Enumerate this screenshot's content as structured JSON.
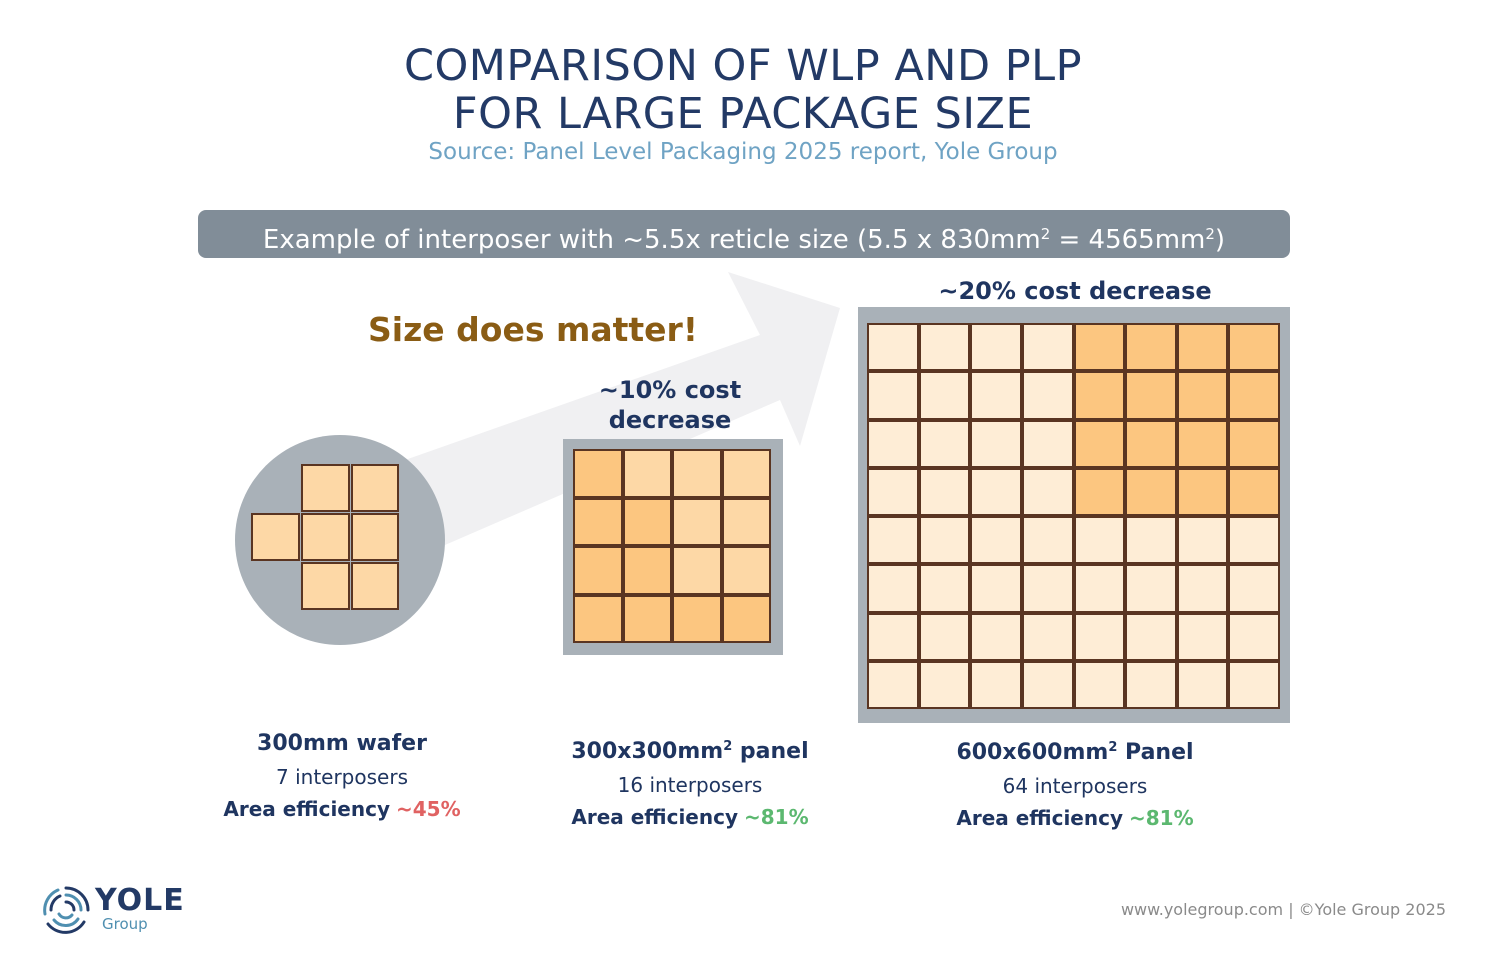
{
  "header": {
    "title_line1": "COMPARISON OF WLP AND PLP",
    "title_line2": "FOR LARGE PACKAGE SIZE",
    "source": "Source: Panel Level Packaging 2025 report, Yole Group"
  },
  "banner": {
    "text_part1": "Example of interposer with ~5.5x reticle size (5.5 x 830mm",
    "sup1": "2",
    "text_part2": " = 4565mm",
    "sup2": "2",
    "text_part3": ")"
  },
  "slogan": "Size does matter!",
  "arrow": {
    "color": "#f0f0f2",
    "direction": "up-right"
  },
  "colors": {
    "title": "#233a66",
    "subtitle": "#6fa3c4",
    "banner_bg": "#818d98",
    "slogan": "#8a5c14",
    "substrate_gray": "#a9b1b8",
    "cell_border": "#5a3522",
    "cell_dark": "#fcc680",
    "cell_mid": "#fdd8a6",
    "cell_light": "#feedd6",
    "bad": "#e06262",
    "good": "#5cb870"
  },
  "carriers": [
    {
      "id": "wafer",
      "title": "300mm wafer",
      "title_sup": "",
      "interposers": "7 interposers",
      "efficiency_label": "Area efficiency",
      "efficiency_value": "~45%",
      "efficiency_status": "bad",
      "cost_note": ""
    },
    {
      "id": "panel-300",
      "title": "300x300mm",
      "title_sup": "2",
      "title_suffix": " panel",
      "interposers": "16 interposers",
      "efficiency_label": "Area efficiency",
      "efficiency_value": "~81%",
      "efficiency_status": "good",
      "cost_note_line1": "~10% cost",
      "cost_note_line2": "decrease",
      "grid": {
        "rows": 4,
        "cols": 4,
        "shades": [
          [
            "dark",
            "mid",
            "mid",
            "mid"
          ],
          [
            "dark",
            "dark",
            "mid",
            "mid"
          ],
          [
            "dark",
            "dark",
            "mid",
            "mid"
          ],
          [
            "dark",
            "dark",
            "dark",
            "dark"
          ]
        ]
      }
    },
    {
      "id": "panel-600",
      "title": "600x600mm",
      "title_sup": "2",
      "title_suffix": " Panel",
      "interposers": "64 interposers",
      "efficiency_label": "Area efficiency",
      "efficiency_value": "~81%",
      "efficiency_status": "good",
      "cost_note": "~20% cost decrease",
      "grid": {
        "rows": 8,
        "cols": 8,
        "highlight": "top-right 4x4 block dark, rest light"
      }
    }
  ],
  "footer": {
    "logo_text": "YOLE",
    "logo_sub": "Group",
    "copyright": "www.yolegroup.com | ©Yole Group 2025"
  }
}
